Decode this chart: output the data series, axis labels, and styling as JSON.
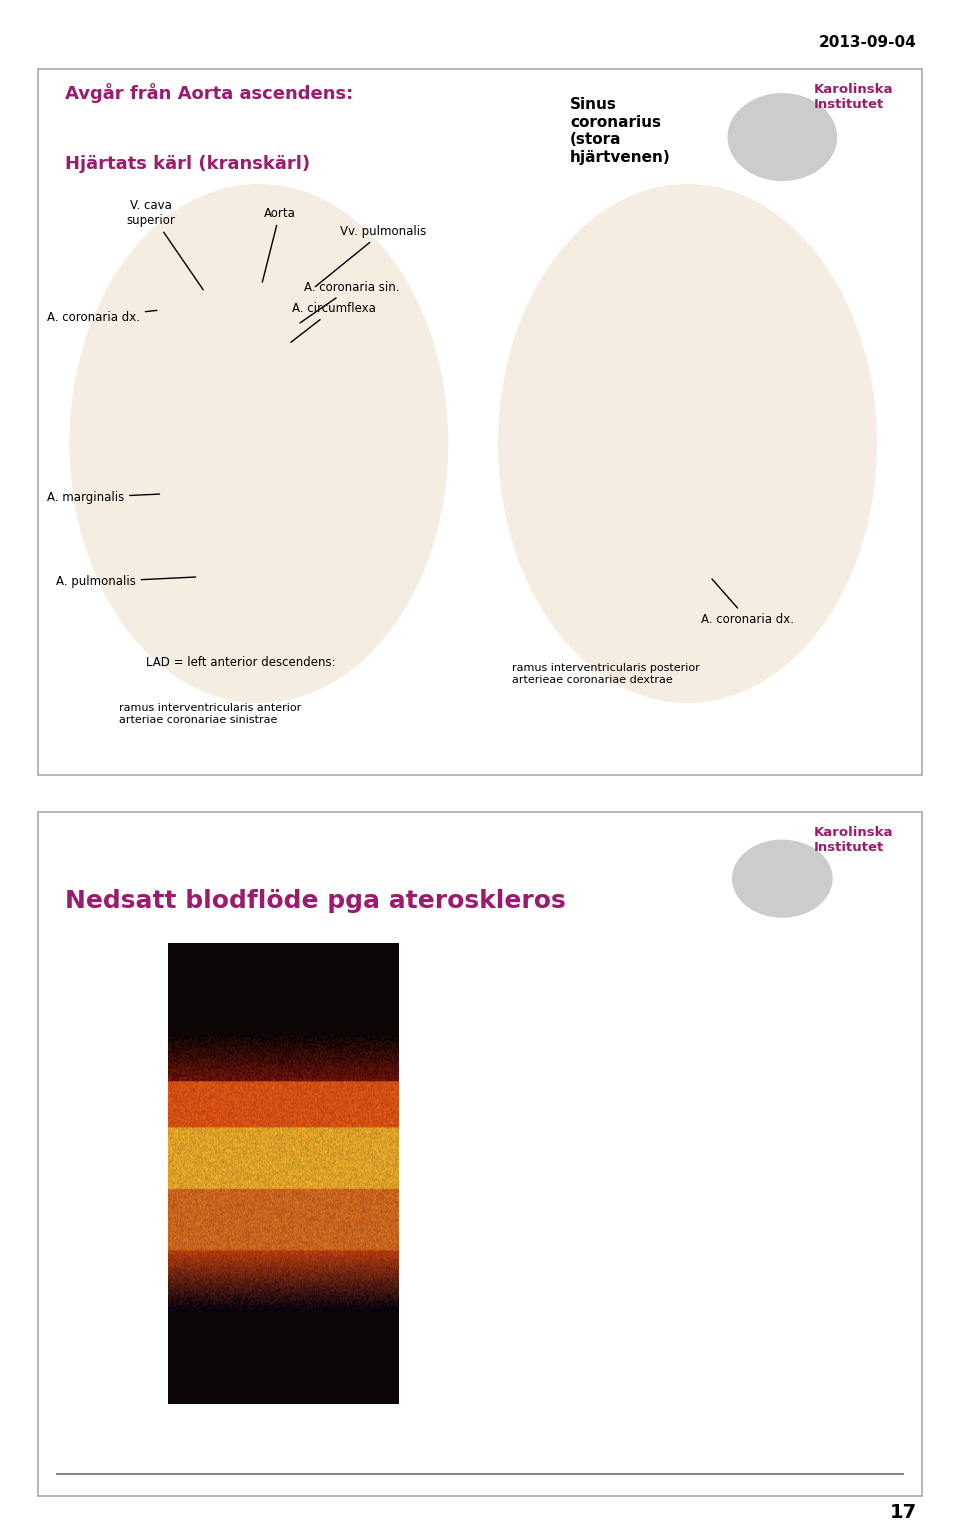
{
  "date_text": "2013-09-04",
  "page_number": "17",
  "background_color": "#ffffff",
  "slide1": {
    "title_line1": "Avgår från Aorta ascendens:",
    "title_line2": "Hjärtats kärl (kranskärl)",
    "title_color": "#9b1b6e",
    "right_title": "Sinus\ncoronarius\n(stora\nhjärtvenen)"
  },
  "slide2": {
    "title": "Nedsatt blodflöde pga ateroskleros",
    "title_color": "#9b1b6e"
  },
  "karolinska_text": "Karolinska\nInstitutet",
  "karolinska_color": "#9b1b6e"
}
